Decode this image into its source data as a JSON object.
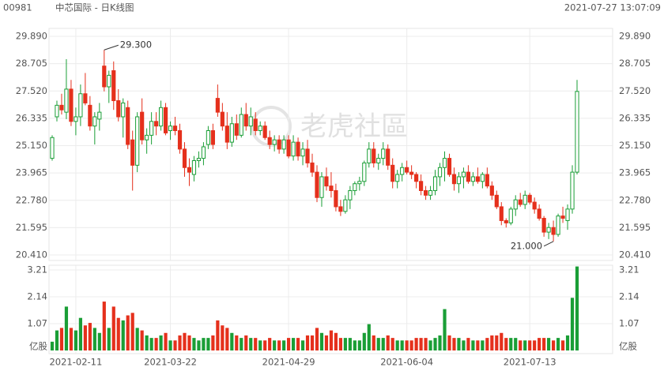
{
  "header": {
    "code": "00981",
    "name": "中芯国际 - 日K线图",
    "time": "2021-07-27 13:07:09"
  },
  "watermark": "老虎社區",
  "chart_data": {
    "type": "candlestick",
    "categories": [
      null,
      null,
      null,
      null,
      null,
      "2021-02-11",
      null,
      null,
      null,
      null,
      null,
      null,
      null,
      null,
      null,
      null,
      null,
      null,
      null,
      null,
      null,
      null,
      null,
      null,
      null,
      "2021-03-22",
      null,
      null,
      null,
      null,
      null,
      null,
      null,
      null,
      null,
      null,
      null,
      null,
      null,
      null,
      null,
      null,
      null,
      null,
      null,
      null,
      null,
      null,
      null,
      null,
      "2021-04-29",
      null,
      null,
      null,
      null,
      null,
      null,
      null,
      null,
      null,
      null,
      null,
      null,
      null,
      null,
      null,
      null,
      null,
      null,
      null,
      null,
      null,
      null,
      null,
      null,
      "2021-06-04",
      null,
      null,
      null,
      null,
      null,
      null,
      null,
      null,
      null,
      null,
      null,
      null,
      null,
      null,
      null,
      null,
      null,
      null,
      null,
      null,
      null,
      null,
      null,
      null,
      null,
      "2021-07-13",
      null,
      null,
      null,
      null,
      null,
      null,
      null,
      null,
      null,
      null
    ],
    "open": [
      24.6,
      26.4,
      26.9,
      26.6,
      27.6,
      26.2,
      26.4,
      27.4,
      26.9,
      26.0,
      26.3,
      28.6,
      27.7,
      28.4,
      27.1,
      26.4,
      26.8,
      25.4,
      24.3,
      26.6,
      25.4,
      25.6,
      26.2,
      26.0,
      26.8,
      25.8,
      26.0,
      25.8,
      25.0,
      24.2,
      23.9,
      24.5,
      24.6,
      25.2,
      25.8,
      27.2,
      26.6,
      26.0,
      25.3,
      26.1,
      25.6,
      26.5,
      26.0,
      26.3,
      25.8,
      26.0,
      25.5,
      25.2,
      25.4,
      25.0,
      25.4,
      24.7,
      25.3,
      24.7,
      25.0,
      24.4,
      24.0,
      22.9,
      23.8,
      23.4,
      23.2,
      22.5,
      22.3,
      22.8,
      23.2,
      23.5,
      23.6,
      24.4,
      25.0,
      24.4,
      24.6,
      25.0,
      24.3,
      23.6,
      23.9,
      24.2,
      24.0,
      23.9,
      23.6,
      23.2,
      23.0,
      23.2,
      23.8,
      24.2,
      24.6,
      23.9,
      23.5,
      23.8,
      24.0,
      23.6,
      23.8,
      23.6,
      23.9,
      23.4,
      23.0,
      22.5,
      21.9,
      21.8,
      22.4,
      22.8,
      22.6,
      23.0,
      22.7,
      22.4,
      22.0,
      21.4,
      21.6,
      21.3,
      22.1,
      21.9,
      22.4,
      24.0
    ],
    "high": [
      25.6,
      27.1,
      27.4,
      28.9,
      28.0,
      26.8,
      27.8,
      28.3,
      27.3,
      26.6,
      27.0,
      29.3,
      28.4,
      28.8,
      27.6,
      27.2,
      27.1,
      25.8,
      26.6,
      27.2,
      25.9,
      26.6,
      26.6,
      27.1,
      27.0,
      26.2,
      26.4,
      26.1,
      25.3,
      24.6,
      24.7,
      24.9,
      25.3,
      26.0,
      26.1,
      27.8,
      27.0,
      26.6,
      26.4,
      26.5,
      26.8,
      27.0,
      26.8,
      26.6,
      26.2,
      26.2,
      25.8,
      25.6,
      25.6,
      25.6,
      25.6,
      25.6,
      25.5,
      25.3,
      25.4,
      24.8,
      24.3,
      24.0,
      24.2,
      24.0,
      23.5,
      22.8,
      23.0,
      23.4,
      23.6,
      23.8,
      24.5,
      25.3,
      25.3,
      24.8,
      25.3,
      25.2,
      24.6,
      24.1,
      24.4,
      24.5,
      24.3,
      24.0,
      23.9,
      23.4,
      23.4,
      24.1,
      24.4,
      24.9,
      24.8,
      24.2,
      24.0,
      24.2,
      24.3,
      24.0,
      24.2,
      24.0,
      24.2,
      23.6,
      23.2,
      22.7,
      22.0,
      22.5,
      23.0,
      23.1,
      23.2,
      23.1,
      22.9,
      22.6,
      22.1,
      21.8,
      21.9,
      22.2,
      22.5,
      22.6,
      24.3,
      28.0
    ],
    "low": [
      24.5,
      26.2,
      26.5,
      26.3,
      26.0,
      25.6,
      26.0,
      26.9,
      25.8,
      25.2,
      25.8,
      27.5,
      27.0,
      26.7,
      26.2,
      25.5,
      25.0,
      23.2,
      24.0,
      25.2,
      24.8,
      25.2,
      25.6,
      25.8,
      25.6,
      25.4,
      25.6,
      24.8,
      23.8,
      23.4,
      23.6,
      24.2,
      24.3,
      25.0,
      25.0,
      26.4,
      25.8,
      25.0,
      25.1,
      25.4,
      25.5,
      25.8,
      25.6,
      25.6,
      25.6,
      25.4,
      25.0,
      24.9,
      24.8,
      24.8,
      24.6,
      24.5,
      24.5,
      24.3,
      24.2,
      23.8,
      22.7,
      22.5,
      23.2,
      22.9,
      22.3,
      22.1,
      22.2,
      22.4,
      23.0,
      23.2,
      23.4,
      24.2,
      24.2,
      24.1,
      24.3,
      24.1,
      23.3,
      23.3,
      23.6,
      23.9,
      23.7,
      23.3,
      23.0,
      22.8,
      22.8,
      23.0,
      23.4,
      23.6,
      23.8,
      23.2,
      23.1,
      23.3,
      23.5,
      23.4,
      23.5,
      23.3,
      23.3,
      22.8,
      22.4,
      21.7,
      21.6,
      21.7,
      22.1,
      22.5,
      22.4,
      22.6,
      22.2,
      21.9,
      21.2,
      21.1,
      21.0,
      21.2,
      21.8,
      21.5,
      22.2,
      23.9
    ],
    "close": [
      25.5,
      26.9,
      26.7,
      27.6,
      26.2,
      26.4,
      27.4,
      27.0,
      26.0,
      26.4,
      26.6,
      27.7,
      28.2,
      27.1,
      26.4,
      27.0,
      25.2,
      24.3,
      26.4,
      25.4,
      25.6,
      26.2,
      26.0,
      26.8,
      25.7,
      26.0,
      25.8,
      25.0,
      24.2,
      24.0,
      24.5,
      24.6,
      25.1,
      25.8,
      25.2,
      26.6,
      26.0,
      25.3,
      26.1,
      25.6,
      26.5,
      26.0,
      26.4,
      25.8,
      26.0,
      25.5,
      25.2,
      25.4,
      25.0,
      25.4,
      24.7,
      25.3,
      24.7,
      25.0,
      24.4,
      24.0,
      22.9,
      23.8,
      23.4,
      23.2,
      22.5,
      22.3,
      22.8,
      23.2,
      23.5,
      23.6,
      24.4,
      25.0,
      24.4,
      24.6,
      25.0,
      24.3,
      23.6,
      23.9,
      24.2,
      24.0,
      23.9,
      23.6,
      23.2,
      23.0,
      23.2,
      23.8,
      24.2,
      24.6,
      23.9,
      23.5,
      23.8,
      24.0,
      23.6,
      23.8,
      23.6,
      23.9,
      23.4,
      23.0,
      22.5,
      21.9,
      21.8,
      22.4,
      22.8,
      22.6,
      23.0,
      22.7,
      22.4,
      22.0,
      21.4,
      21.6,
      21.3,
      22.1,
      22.0,
      22.4,
      24.0,
      27.5
    ],
    "volume": [
      0.35,
      0.8,
      0.9,
      1.75,
      0.9,
      0.8,
      1.3,
      1.0,
      1.1,
      0.9,
      0.7,
      1.95,
      0.9,
      1.75,
      1.3,
      1.2,
      1.4,
      1.5,
      0.9,
      0.8,
      0.6,
      0.5,
      0.5,
      0.6,
      0.7,
      0.4,
      0.4,
      0.6,
      0.7,
      0.6,
      0.5,
      0.4,
      0.5,
      0.5,
      0.6,
      1.2,
      1.0,
      0.9,
      0.7,
      0.6,
      0.5,
      0.6,
      0.5,
      0.5,
      0.4,
      0.4,
      0.5,
      0.4,
      0.4,
      0.4,
      0.5,
      0.5,
      0.5,
      0.4,
      0.6,
      0.6,
      0.9,
      0.7,
      0.6,
      0.8,
      0.7,
      0.5,
      0.5,
      0.5,
      0.4,
      0.4,
      0.7,
      1.05,
      0.6,
      0.5,
      0.5,
      0.6,
      0.5,
      0.4,
      0.4,
      0.4,
      0.4,
      0.5,
      0.5,
      0.5,
      0.4,
      0.5,
      0.6,
      1.65,
      0.6,
      0.5,
      0.5,
      0.4,
      0.5,
      0.4,
      0.4,
      0.4,
      0.5,
      0.6,
      0.6,
      0.7,
      0.5,
      0.5,
      0.5,
      0.4,
      0.4,
      0.4,
      0.4,
      0.5,
      0.5,
      0.5,
      0.4,
      0.5,
      0.4,
      0.6,
      2.1,
      3.35
    ],
    "up_color": "#1a9e36",
    "down_color": "#e5301c",
    "ylim": [
      20.41,
      29.89
    ],
    "yticks": [
      {
        "value": 29.89,
        "label": "29.890"
      },
      28.705,
      {
        "value": 27.52,
        "label": "27.520"
      },
      26.335,
      {
        "value": 25.15,
        "label": "25.150"
      },
      23.965,
      {
        "value": 22.78,
        "label": "22.780"
      },
      21.595,
      {
        "value": 20.41,
        "label": "20.410"
      }
    ],
    "y2lim": [
      0,
      3.4
    ],
    "y2ticks": [
      3.21,
      2.14,
      1.07
    ],
    "y2_unit": "亿股",
    "annotations": [
      {
        "label": "29.300",
        "value": 29.3
      },
      {
        "label": "21.000",
        "value": 21.0
      }
    ],
    "grid": true
  }
}
